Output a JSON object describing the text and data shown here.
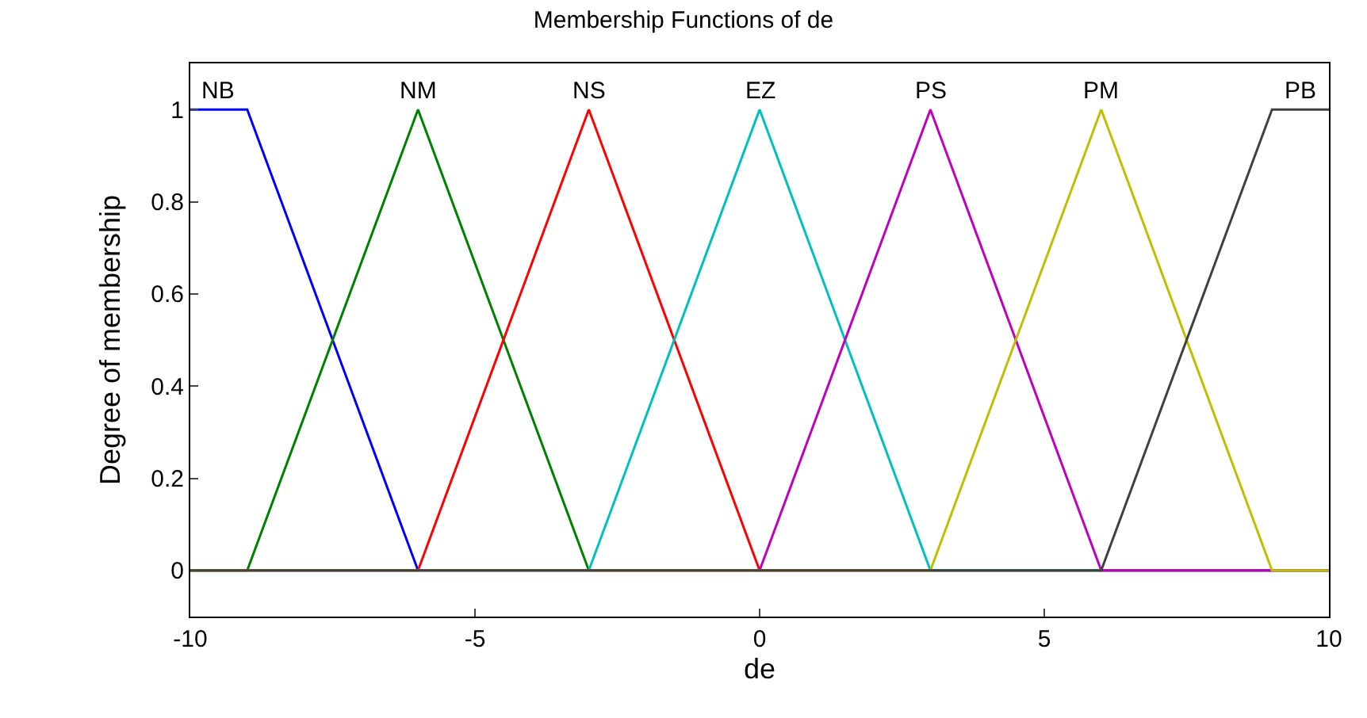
{
  "chart_data": {
    "type": "line",
    "title": "Membership Functions of de",
    "xlabel": "de",
    "ylabel": "Degree of membership",
    "xlim": [
      -10,
      10
    ],
    "xticks": [
      -10,
      -5,
      0,
      5,
      10
    ],
    "ylim": [
      -0.1,
      1.1
    ],
    "yticks": [
      0,
      0.2,
      0.4,
      0.6,
      0.8,
      1
    ],
    "grid": false,
    "legend": false,
    "marker": "none",
    "line_style": "solid",
    "series": [
      {
        "name": "NB",
        "color": "#0000ff",
        "x": [
          -10,
          -9,
          -6
        ],
        "values": [
          1,
          1,
          0
        ]
      },
      {
        "name": "NM",
        "color": "#008000",
        "x": [
          -10,
          -9,
          -6,
          -3,
          10
        ],
        "values": [
          0,
          0,
          1,
          0,
          0
        ]
      },
      {
        "name": "NS",
        "color": "#ff0000",
        "x": [
          -10,
          -6,
          -3,
          0,
          10
        ],
        "values": [
          0,
          0,
          1,
          0,
          0
        ]
      },
      {
        "name": "EZ",
        "color": "#00bfbf",
        "x": [
          -10,
          -3,
          0,
          3,
          10
        ],
        "values": [
          0,
          0,
          1,
          0,
          0
        ]
      },
      {
        "name": "PS",
        "color": "#bf00bf",
        "x": [
          -10,
          0,
          3,
          6,
          10
        ],
        "values": [
          0,
          0,
          1,
          0,
          0
        ]
      },
      {
        "name": "PM",
        "color": "#bfbf00",
        "x": [
          -10,
          3,
          6,
          9,
          10
        ],
        "values": [
          0,
          0,
          1,
          0,
          0
        ]
      },
      {
        "name": "PB",
        "color": "#404040",
        "x": [
          -10,
          6,
          9,
          10
        ],
        "values": [
          0,
          0,
          1,
          1
        ]
      }
    ]
  }
}
